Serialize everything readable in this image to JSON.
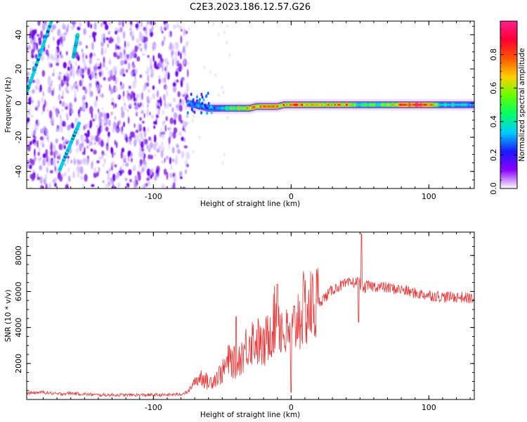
{
  "figure_title": "C2E3.2023.186.12.57.G26",
  "chart_data": [
    {
      "type": "heatmap",
      "xlabel": "Height of straight line (km)",
      "ylabel": "Frequency (Hz)",
      "xlim": [
        -192,
        133
      ],
      "ylim": [
        -50,
        48
      ],
      "x_ticks": [
        -100,
        0,
        100
      ],
      "y_ticks": [
        -40,
        -20,
        0,
        20,
        40
      ],
      "colorbar": {
        "label": "Normalized spectral amplitude",
        "range": [
          0.0,
          1.0
        ],
        "ticks": [
          "0.0",
          "0.2",
          "0.4",
          "0.6",
          "0.8"
        ],
        "colors": [
          "#ffffff",
          "#8a00ff",
          "#1a1aff",
          "#00ccff",
          "#00ff66",
          "#66ff00",
          "#ffd000",
          "#ff5500",
          "#ff0033",
          "#ff2090"
        ]
      },
      "noise_region_x": [
        -192,
        -75
      ],
      "carrier_track": {
        "x": [
          -75,
          -70,
          -65,
          -60,
          -55,
          -50,
          -45,
          -40,
          -35,
          -30,
          -25,
          -20,
          -15,
          -10,
          -5,
          0,
          5,
          10,
          20,
          30,
          40,
          50,
          60,
          70,
          80,
          90,
          100,
          110,
          120,
          133
        ],
        "freq": [
          0,
          -1,
          -2,
          -3,
          -3,
          -3,
          -3,
          -3,
          -3,
          -3,
          -2,
          -2,
          -2,
          -2,
          -1,
          -1,
          -1,
          -1,
          -1,
          -1,
          -1,
          -1,
          -1,
          -1,
          -1,
          -1,
          -1,
          -1,
          -1,
          -1
        ],
        "amplitude": [
          0.4,
          0.35,
          0.3,
          0.3,
          0.4,
          0.45,
          0.6,
          0.7,
          0.75,
          0.8,
          0.85,
          0.85,
          0.9,
          0.9,
          0.85,
          0.8,
          0.9,
          0.85,
          0.75,
          0.8,
          0.85,
          0.6,
          0.6,
          0.7,
          0.9,
          0.95,
          0.85,
          0.55,
          0.5,
          0.45
        ]
      },
      "diagonal_streaks": [
        {
          "x": [
            -192,
            -174
          ],
          "freq": [
            6,
            48
          ]
        },
        {
          "x": [
            -158,
            -155
          ],
          "freq": [
            27,
            40
          ]
        },
        {
          "x": [
            -168,
            -154
          ],
          "freq": [
            -39,
            -12
          ]
        }
      ]
    },
    {
      "type": "line",
      "xlabel": "Height of straight line (km)",
      "ylabel": "SNR (10 * v/v)",
      "xlim": [
        -192,
        133
      ],
      "ylim": [
        0,
        9300
      ],
      "x_ticks": [
        -100,
        0,
        100
      ],
      "y_ticks": [
        2000,
        4000,
        6000,
        8000
      ],
      "color": "#ee3333",
      "x": [
        -192,
        -180,
        -170,
        -160,
        -150,
        -140,
        -120,
        -100,
        -90,
        -80,
        -75,
        -70,
        -65,
        -60,
        -55,
        -50,
        -45,
        -40,
        -35,
        -30,
        -25,
        -20,
        -15,
        -10,
        -5,
        0,
        5,
        10,
        15,
        20,
        25,
        30,
        35,
        40,
        45,
        50,
        52,
        55,
        60,
        70,
        80,
        90,
        100,
        110,
        120,
        133
      ],
      "y": [
        350,
        400,
        300,
        350,
        300,
        250,
        250,
        250,
        250,
        300,
        400,
        1000,
        1300,
        900,
        1200,
        1500,
        2200,
        2000,
        2600,
        3300,
        3300,
        2800,
        4000,
        4600,
        3600,
        3500,
        4600,
        5000,
        5100,
        5400,
        5700,
        6100,
        6300,
        6400,
        6500,
        6500,
        6100,
        6300,
        6300,
        6200,
        6100,
        5900,
        5800,
        5700,
        5700,
        5600
      ],
      "spikes": [
        {
          "x": 51,
          "y": 9200
        },
        {
          "x": 49,
          "y": 4300
        },
        {
          "x": 0,
          "y": 400
        },
        {
          "x": -40,
          "y": 4600
        },
        {
          "x": -10,
          "y": 6400
        }
      ]
    }
  ]
}
